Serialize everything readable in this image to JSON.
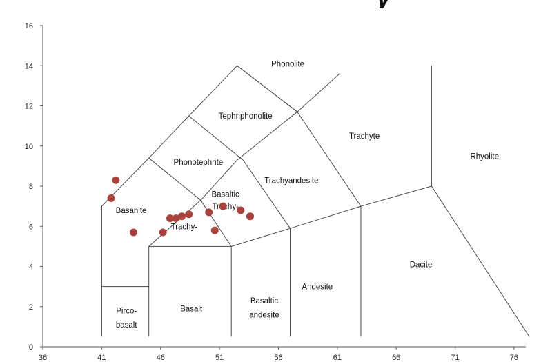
{
  "chart_data": {
    "type": "scatter",
    "title": "",
    "xlabel": "",
    "ylabel": "",
    "xlim": [
      36,
      77
    ],
    "ylim": [
      0,
      16
    ],
    "x_ticks": [
      "36",
      "41",
      "46",
      "51",
      "56",
      "61",
      "66",
      "71",
      "76"
    ],
    "y_ticks": [
      "0",
      "2",
      "4",
      "6",
      "8",
      "10",
      "12",
      "14",
      "16"
    ],
    "grid": false,
    "legend": "none",
    "point_color": "#a8423c",
    "line_color": "#4a4a4a",
    "series": [
      {
        "points": [
          {
            "x": 42.2,
            "y": 8.3
          },
          {
            "x": 41.8,
            "y": 7.4
          },
          {
            "x": 43.7,
            "y": 5.7
          },
          {
            "x": 46.2,
            "y": 5.7
          },
          {
            "x": 46.8,
            "y": 6.4
          },
          {
            "x": 47.3,
            "y": 6.4
          },
          {
            "x": 47.8,
            "y": 6.5
          },
          {
            "x": 48.4,
            "y": 6.6
          },
          {
            "x": 50.1,
            "y": 6.7
          },
          {
            "x": 50.6,
            "y": 5.8
          },
          {
            "x": 51.3,
            "y": 7.0
          },
          {
            "x": 52.8,
            "y": 6.8
          },
          {
            "x": 53.6,
            "y": 6.5
          }
        ]
      }
    ],
    "boundaries": [
      [
        [
          41,
          0.5
        ],
        [
          41,
          7
        ],
        [
          45,
          9.4
        ],
        [
          48.4,
          11.5
        ],
        [
          52.5,
          14
        ],
        [
          57.6,
          11.7
        ],
        [
          63,
          7
        ],
        [
          69,
          8
        ],
        [
          77.3,
          0.5
        ]
      ],
      [
        [
          41,
          3
        ],
        [
          45,
          3
        ],
        [
          45,
          0.5
        ]
      ],
      [
        [
          45,
          3
        ],
        [
          45,
          5
        ],
        [
          49.4,
          7.3
        ],
        [
          52.5,
          9.3
        ],
        [
          57.6,
          11.7
        ],
        [
          61.2,
          13.6
        ]
      ],
      [
        [
          45,
          5
        ],
        [
          52,
          5
        ],
        [
          52,
          0.5
        ]
      ],
      [
        [
          52,
          5
        ],
        [
          49.4,
          7.3
        ],
        [
          45,
          9.4
        ]
      ],
      [
        [
          52,
          5
        ],
        [
          57,
          5.9
        ],
        [
          63,
          7
        ],
        [
          63,
          0.5
        ]
      ],
      [
        [
          57,
          0.5
        ],
        [
          57,
          5.9
        ],
        [
          53,
          9.3
        ],
        [
          48.4,
          11.5
        ]
      ],
      [
        [
          69,
          8
        ],
        [
          69,
          14
        ]
      ],
      [
        [
          52.5,
          14
        ],
        [
          57.6,
          11.7
        ]
      ]
    ],
    "field_labels": [
      {
        "text": "Phonolite",
        "x": 56.8,
        "y": 14.1
      },
      {
        "text": "Tephriphonolite",
        "x": 53.2,
        "y": 11.5
      },
      {
        "text": "Trachyte",
        "x": 63.3,
        "y": 10.5
      },
      {
        "text": "Rhyolite",
        "x": 73.5,
        "y": 9.5
      },
      {
        "text": "Phonotephrite",
        "x": 49.2,
        "y": 9.2
      },
      {
        "text": "Trachyandesite",
        "x": 57.1,
        "y": 8.3
      },
      {
        "text": "Basaltic",
        "x": 51.5,
        "y": 7.6
      },
      {
        "text": "Trachy-",
        "x": 51.5,
        "y": 7.0
      },
      {
        "text": "Basanite",
        "x": 43.5,
        "y": 6.8
      },
      {
        "text": "Trachy-",
        "x": 48.0,
        "y": 6.0
      },
      {
        "text": "Dacite",
        "x": 68.1,
        "y": 4.1
      },
      {
        "text": "Andesite",
        "x": 59.3,
        "y": 3.0
      },
      {
        "text": "Basaltic",
        "x": 54.8,
        "y": 2.3
      },
      {
        "text": "andesite",
        "x": 54.8,
        "y": 1.6
      },
      {
        "text": "Basalt",
        "x": 48.6,
        "y": 1.9
      },
      {
        "text": "Pirco-",
        "x": 43.1,
        "y": 1.8
      },
      {
        "text": "basalt",
        "x": 43.1,
        "y": 1.1
      }
    ]
  },
  "title_fragment": "y"
}
